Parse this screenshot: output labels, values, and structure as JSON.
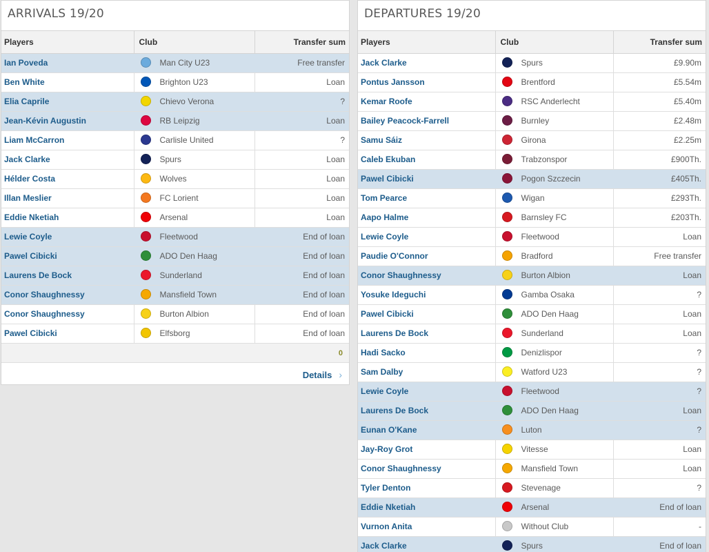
{
  "arrivals": {
    "title": "ARRIVALS 19/20",
    "headers": {
      "players": "Players",
      "club": "Club",
      "sum": "Transfer sum"
    },
    "rows": [
      {
        "player": "Ian Poveda",
        "club": "Man City U23",
        "sum": "Free transfer",
        "hl": true,
        "crest": "#6cabdd"
      },
      {
        "player": "Ben White",
        "club": "Brighton U23",
        "sum": "Loan",
        "hl": false,
        "crest": "#0057b8"
      },
      {
        "player": "Elia Caprile",
        "club": "Chievo Verona",
        "sum": "?",
        "hl": true,
        "crest": "#f2d600"
      },
      {
        "player": "Jean-Kévin Augustin",
        "club": "RB Leipzig",
        "sum": "Loan",
        "hl": true,
        "crest": "#dd0741"
      },
      {
        "player": "Liam McCarron",
        "club": "Carlisle United",
        "sum": "?",
        "hl": false,
        "crest": "#2b3990"
      },
      {
        "player": "Jack Clarke",
        "club": "Spurs",
        "sum": "Loan",
        "hl": false,
        "crest": "#132257"
      },
      {
        "player": "Hélder Costa",
        "club": "Wolves",
        "sum": "Loan",
        "hl": false,
        "crest": "#fdb913"
      },
      {
        "player": "Illan Meslier",
        "club": "FC Lorient",
        "sum": "Loan",
        "hl": false,
        "crest": "#f47920"
      },
      {
        "player": "Eddie Nketiah",
        "club": "Arsenal",
        "sum": "Loan",
        "hl": false,
        "crest": "#ef0107"
      },
      {
        "player": "Lewie Coyle",
        "club": "Fleetwood",
        "sum": "End of loan",
        "hl": true,
        "crest": "#c8102e"
      },
      {
        "player": "Pawel Cibicki",
        "club": "ADO Den Haag",
        "sum": "End of loan",
        "hl": true,
        "crest": "#2f8f3a"
      },
      {
        "player": "Laurens De Bock",
        "club": "Sunderland",
        "sum": "End of loan",
        "hl": true,
        "crest": "#eb172b"
      },
      {
        "player": "Conor Shaughnessy",
        "club": "Mansfield Town",
        "sum": "End of loan",
        "hl": true,
        "crest": "#f5a800"
      },
      {
        "player": "Conor Shaughnessy",
        "club": "Burton Albion",
        "sum": "End of loan",
        "hl": false,
        "crest": "#f7d117"
      },
      {
        "player": "Pawel Cibicki",
        "club": "Elfsborg",
        "sum": "End of loan",
        "hl": false,
        "crest": "#f2c500"
      }
    ],
    "total": "0",
    "details_label": "Details",
    "details_icon": "chevron-right-icon"
  },
  "departures": {
    "title": "DEPARTURES 19/20",
    "headers": {
      "players": "Players",
      "club": "Club",
      "sum": "Transfer sum"
    },
    "rows": [
      {
        "player": "Jack Clarke",
        "club": "Spurs",
        "sum": "£9.90m",
        "hl": false,
        "crest": "#132257"
      },
      {
        "player": "Pontus Jansson",
        "club": "Brentford",
        "sum": "£5.54m",
        "hl": false,
        "crest": "#e30613"
      },
      {
        "player": "Kemar Roofe",
        "club": "RSC Anderlecht",
        "sum": "£5.40m",
        "hl": false,
        "crest": "#4b2c83"
      },
      {
        "player": "Bailey Peacock-Farrell",
        "club": "Burnley",
        "sum": "£2.48m",
        "hl": false,
        "crest": "#6c1d45"
      },
      {
        "player": "Samu Sáiz",
        "club": "Girona",
        "sum": "£2.25m",
        "hl": false,
        "crest": "#cd2534"
      },
      {
        "player": "Caleb Ekuban",
        "club": "Trabzonspor",
        "sum": "£900Th.",
        "hl": false,
        "crest": "#7a1c36"
      },
      {
        "player": "Pawel Cibicki",
        "club": "Pogon Szczecin",
        "sum": "£405Th.",
        "hl": true,
        "crest": "#8a1538"
      },
      {
        "player": "Tom Pearce",
        "club": "Wigan",
        "sum": "£293Th.",
        "hl": false,
        "crest": "#1d59af"
      },
      {
        "player": "Aapo Halme",
        "club": "Barnsley FC",
        "sum": "£203Th.",
        "hl": false,
        "crest": "#d71920"
      },
      {
        "player": "Lewie Coyle",
        "club": "Fleetwood",
        "sum": "Loan",
        "hl": false,
        "crest": "#c8102e"
      },
      {
        "player": "Paudie O'Connor",
        "club": "Bradford",
        "sum": "Free transfer",
        "hl": false,
        "crest": "#f5a300"
      },
      {
        "player": "Conor Shaughnessy",
        "club": "Burton Albion",
        "sum": "Loan",
        "hl": true,
        "crest": "#f7d117"
      },
      {
        "player": "Yosuke Ideguchi",
        "club": "Gamba Osaka",
        "sum": "?",
        "hl": false,
        "crest": "#003a93"
      },
      {
        "player": "Pawel Cibicki",
        "club": "ADO Den Haag",
        "sum": "Loan",
        "hl": false,
        "crest": "#2f8f3a"
      },
      {
        "player": "Laurens De Bock",
        "club": "Sunderland",
        "sum": "Loan",
        "hl": false,
        "crest": "#eb172b"
      },
      {
        "player": "Hadi Sacko",
        "club": "Denizlispor",
        "sum": "?",
        "hl": false,
        "crest": "#009a44"
      },
      {
        "player": "Sam Dalby",
        "club": "Watford U23",
        "sum": "?",
        "hl": false,
        "crest": "#fbee23"
      },
      {
        "player": "Lewie Coyle",
        "club": "Fleetwood",
        "sum": "?",
        "hl": true,
        "crest": "#c8102e"
      },
      {
        "player": "Laurens De Bock",
        "club": "ADO Den Haag",
        "sum": "Loan",
        "hl": true,
        "crest": "#2f8f3a"
      },
      {
        "player": "Eunan O'Kane",
        "club": "Luton",
        "sum": "?",
        "hl": true,
        "crest": "#f78f1e"
      },
      {
        "player": "Jay-Roy Grot",
        "club": "Vitesse",
        "sum": "Loan",
        "hl": false,
        "crest": "#f6d300"
      },
      {
        "player": "Conor Shaughnessy",
        "club": "Mansfield Town",
        "sum": "Loan",
        "hl": false,
        "crest": "#f5a800"
      },
      {
        "player": "Tyler Denton",
        "club": "Stevenage",
        "sum": "?",
        "hl": false,
        "crest": "#d71920"
      },
      {
        "player": "Eddie Nketiah",
        "club": "Arsenal",
        "sum": "End of loan",
        "hl": true,
        "crest": "#ef0107"
      },
      {
        "player": "Vurnon Anita",
        "club": "Without Club",
        "sum": "-",
        "hl": false,
        "crest": "#c8c8c8"
      },
      {
        "player": "Jack Clarke",
        "club": "Spurs",
        "sum": "End of loan",
        "hl": true,
        "crest": "#132257"
      }
    ]
  }
}
